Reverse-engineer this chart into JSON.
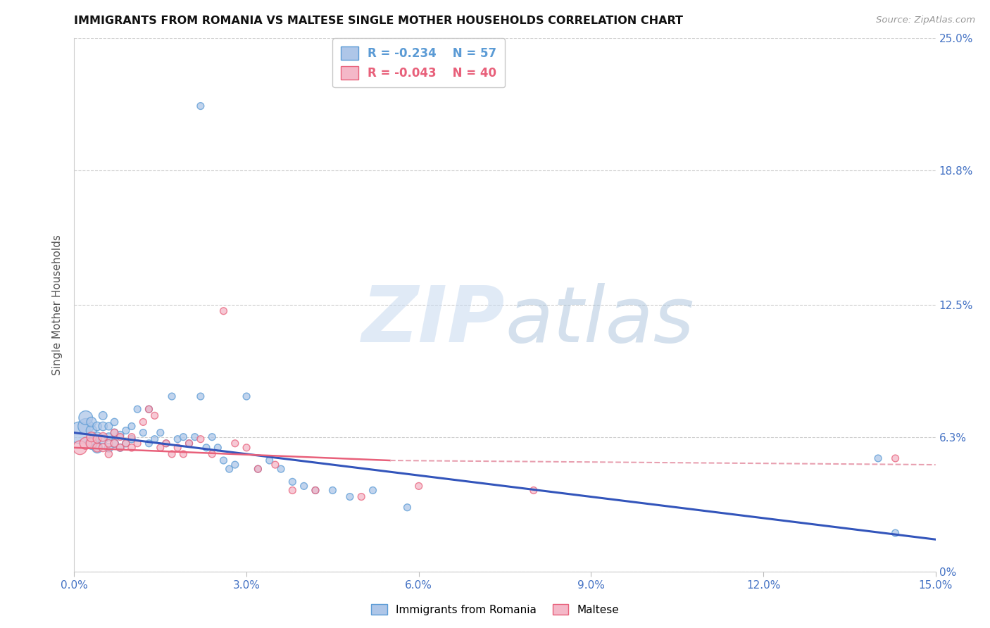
{
  "title": "IMMIGRANTS FROM ROMANIA VS MALTESE SINGLE MOTHER HOUSEHOLDS CORRELATION CHART",
  "source": "Source: ZipAtlas.com",
  "ylabel": "Single Mother Households",
  "xlim": [
    0.0,
    0.15
  ],
  "ylim": [
    0.0,
    0.25
  ],
  "xtick_vals": [
    0.0,
    0.03,
    0.06,
    0.09,
    0.12,
    0.15
  ],
  "xtick_labels": [
    "0.0%",
    "3.0%",
    "6.0%",
    "9.0%",
    "12.0%",
    "15.0%"
  ],
  "ytick_vals": [
    0.0,
    0.063,
    0.125,
    0.188,
    0.25
  ],
  "ytick_labels": [
    "0%",
    "6.3%",
    "12.5%",
    "18.8%",
    "25.0%"
  ],
  "series1_label": "Immigrants from Romania",
  "series1_R": "-0.234",
  "series1_N": "57",
  "series1_face": "#aec6e8",
  "series1_edge": "#5b9bd5",
  "series2_label": "Maltese",
  "series2_R": "-0.043",
  "series2_N": "40",
  "series2_face": "#f4b8c8",
  "series2_edge": "#e8607a",
  "trend1_color": "#3355bb",
  "trend2_solid_color": "#e8607a",
  "trend2_dash_color": "#e8a0b0",
  "watermark": "ZIPatlas",
  "blue_x": [
    0.001,
    0.002,
    0.002,
    0.003,
    0.003,
    0.003,
    0.004,
    0.004,
    0.004,
    0.005,
    0.005,
    0.005,
    0.006,
    0.006,
    0.006,
    0.007,
    0.007,
    0.007,
    0.008,
    0.008,
    0.009,
    0.009,
    0.01,
    0.01,
    0.011,
    0.012,
    0.013,
    0.013,
    0.014,
    0.015,
    0.016,
    0.017,
    0.018,
    0.019,
    0.02,
    0.021,
    0.022,
    0.023,
    0.024,
    0.025,
    0.026,
    0.027,
    0.028,
    0.03,
    0.032,
    0.034,
    0.036,
    0.038,
    0.04,
    0.042,
    0.045,
    0.048,
    0.052,
    0.058,
    0.022,
    0.14,
    0.143
  ],
  "blue_y": [
    0.065,
    0.068,
    0.072,
    0.06,
    0.066,
    0.07,
    0.058,
    0.063,
    0.068,
    0.062,
    0.068,
    0.073,
    0.058,
    0.063,
    0.068,
    0.06,
    0.065,
    0.07,
    0.058,
    0.064,
    0.06,
    0.066,
    0.062,
    0.068,
    0.076,
    0.065,
    0.06,
    0.076,
    0.062,
    0.065,
    0.06,
    0.082,
    0.062,
    0.063,
    0.06,
    0.063,
    0.082,
    0.058,
    0.063,
    0.058,
    0.052,
    0.048,
    0.05,
    0.082,
    0.048,
    0.052,
    0.048,
    0.042,
    0.04,
    0.038,
    0.038,
    0.035,
    0.038,
    0.03,
    0.218,
    0.053,
    0.018
  ],
  "blue_s": [
    500,
    250,
    200,
    150,
    120,
    100,
    120,
    100,
    80,
    100,
    80,
    70,
    80,
    70,
    60,
    70,
    60,
    55,
    60,
    55,
    55,
    50,
    55,
    50,
    50,
    50,
    50,
    50,
    50,
    50,
    50,
    50,
    50,
    50,
    50,
    50,
    50,
    50,
    50,
    50,
    50,
    50,
    50,
    50,
    50,
    50,
    50,
    50,
    50,
    50,
    50,
    50,
    50,
    50,
    50,
    50,
    50
  ],
  "pink_x": [
    0.001,
    0.002,
    0.003,
    0.003,
    0.004,
    0.004,
    0.005,
    0.005,
    0.006,
    0.006,
    0.007,
    0.007,
    0.008,
    0.008,
    0.009,
    0.01,
    0.01,
    0.011,
    0.012,
    0.013,
    0.014,
    0.015,
    0.016,
    0.017,
    0.018,
    0.019,
    0.02,
    0.022,
    0.024,
    0.026,
    0.028,
    0.03,
    0.032,
    0.035,
    0.038,
    0.042,
    0.05,
    0.06,
    0.08,
    0.143
  ],
  "pink_y": [
    0.058,
    0.06,
    0.06,
    0.063,
    0.058,
    0.062,
    0.063,
    0.058,
    0.06,
    0.055,
    0.06,
    0.065,
    0.058,
    0.063,
    0.06,
    0.058,
    0.063,
    0.06,
    0.07,
    0.076,
    0.073,
    0.058,
    0.06,
    0.055,
    0.058,
    0.055,
    0.06,
    0.062,
    0.055,
    0.122,
    0.06,
    0.058,
    0.048,
    0.05,
    0.038,
    0.038,
    0.035,
    0.04,
    0.038,
    0.053
  ],
  "pink_s": [
    200,
    150,
    120,
    100,
    80,
    70,
    80,
    70,
    60,
    55,
    60,
    55,
    55,
    50,
    50,
    55,
    50,
    50,
    50,
    50,
    50,
    50,
    50,
    50,
    50,
    50,
    50,
    50,
    50,
    50,
    50,
    50,
    50,
    50,
    50,
    50,
    50,
    50,
    50,
    50
  ],
  "trend1_x0": 0.0,
  "trend1_y0": 0.065,
  "trend1_x1": 0.15,
  "trend1_y1": 0.015,
  "trend2_solid_x0": 0.0,
  "trend2_solid_y0": 0.058,
  "trend2_solid_x1": 0.055,
  "trend2_solid_y1": 0.052,
  "trend2_dash_x0": 0.055,
  "trend2_dash_y0": 0.052,
  "trend2_dash_x1": 0.15,
  "trend2_dash_y1": 0.05
}
